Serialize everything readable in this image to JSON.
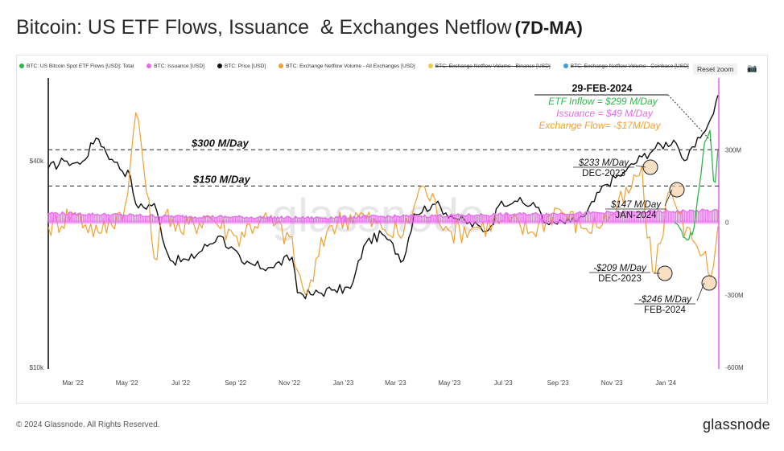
{
  "page": {
    "title": "Bitcoin: US ETF Flows, Issuance  & Exchanges Netflow",
    "title_suffix": "(7D-MA)",
    "footer_copyright": "© 2024 Glassnode. All Rights Reserved.",
    "footer_brand": "glassnode",
    "watermark": "glassnode",
    "reset_zoom": "Reset zoom",
    "camera_icon": "camera-icon"
  },
  "legend": [
    {
      "label": "BTC: US Bitcoin Spot ETF Flows [USD]: Total",
      "color": "#2eb84a",
      "hidden": false
    },
    {
      "label": "BTC: Issuance [USD]",
      "color": "#e56be8",
      "hidden": false
    },
    {
      "label": "BTC: Price [USD]",
      "color": "#111111",
      "hidden": false
    },
    {
      "label": "BTC: Exchange Netflow Volume - All Exchanges [USD]",
      "color": "#f0a030",
      "hidden": false
    },
    {
      "label": "BTC: Exchange Netflow Volume - Binance [USD]",
      "color": "#f2c94c",
      "hidden": true
    },
    {
      "label": "BTC: Exchange Netflow Volume - Coinbase [USD]",
      "color": "#3aa0d8",
      "hidden": true
    }
  ],
  "chart_data": {
    "type": "line",
    "x_ticks": [
      "Mar '22",
      "May '22",
      "Jul '22",
      "Sep '22",
      "Nov '22",
      "Jan '23",
      "Mar '23",
      "May '23",
      "Jul '23",
      "Sep '23",
      "Nov '23",
      "Jan '24"
    ],
    "y_left_ticks": [
      "$40k",
      "$10k"
    ],
    "y_left_scale": "log",
    "y_right_ticks": [
      "300M",
      "0",
      "-300M",
      "-600M"
    ],
    "y_right_range": [
      -600,
      600
    ],
    "series": [
      {
        "name": "BTC: Price [USD]",
        "color": "#111111",
        "axis": "left",
        "x": [
          "2022-02-01",
          "2022-02-20",
          "2022-03-10",
          "2022-03-28",
          "2022-04-15",
          "2022-05-05",
          "2022-05-12",
          "2022-06-01",
          "2022-06-18",
          "2022-07-10",
          "2022-08-14",
          "2022-09-10",
          "2022-10-10",
          "2022-11-05",
          "2022-11-10",
          "2022-11-25",
          "2022-12-20",
          "2023-01-10",
          "2023-01-25",
          "2023-02-15",
          "2023-03-10",
          "2023-03-22",
          "2023-04-14",
          "2023-05-10",
          "2023-06-15",
          "2023-06-28",
          "2023-07-15",
          "2023-08-10",
          "2023-08-20",
          "2023-09-15",
          "2023-10-01",
          "2023-10-24",
          "2023-11-15",
          "2023-12-05",
          "2023-12-20",
          "2024-01-11",
          "2024-01-23",
          "2024-02-10",
          "2024-02-20",
          "2024-02-29"
        ],
        "values": [
          38000,
          40000,
          39000,
          47000,
          40000,
          36000,
          29000,
          30000,
          20500,
          20500,
          24300,
          20000,
          19500,
          21000,
          16500,
          16300,
          16800,
          17000,
          23000,
          24500,
          20500,
          28000,
          30000,
          27000,
          25000,
          30500,
          30500,
          29200,
          26000,
          26500,
          27500,
          34000,
          37000,
          41000,
          43500,
          46000,
          39500,
          47000,
          52000,
          62000
        ]
      },
      {
        "name": "BTC: Exchange Netflow Volume - All Exchanges [USD]",
        "color": "#f0a030",
        "axis": "right",
        "x": [
          "2022-02-01",
          "2022-03-01",
          "2022-04-01",
          "2022-05-01",
          "2022-05-12",
          "2022-06-01",
          "2022-06-15",
          "2022-07-01",
          "2022-08-01",
          "2022-09-01",
          "2022-10-01",
          "2022-11-01",
          "2022-11-10",
          "2022-11-20",
          "2022-12-15",
          "2023-01-15",
          "2023-02-15",
          "2023-03-10",
          "2023-04-01",
          "2023-05-01",
          "2023-06-01",
          "2023-07-01",
          "2023-08-01",
          "2023-09-01",
          "2023-10-01",
          "2023-11-01",
          "2023-11-20",
          "2023-12-05",
          "2023-12-10",
          "2023-12-20",
          "2024-01-05",
          "2024-01-15",
          "2024-02-01",
          "2024-02-15",
          "2024-02-22",
          "2024-02-29"
        ],
        "values": [
          -20,
          40,
          -50,
          80,
          490,
          -150,
          60,
          -40,
          30,
          -60,
          20,
          -60,
          -200,
          -310,
          -20,
          40,
          -30,
          -50,
          160,
          -40,
          -20,
          10,
          -40,
          60,
          -30,
          30,
          120,
          233,
          -50,
          -209,
          147,
          40,
          -80,
          -120,
          -246,
          -17
        ]
      },
      {
        "name": "BTC: Issuance [USD]",
        "color": "#e56be8",
        "axis": "right",
        "x": [
          "2022-02-01",
          "2022-06-15",
          "2022-11-20",
          "2023-06-01",
          "2023-12-01",
          "2024-02-29"
        ],
        "values": [
          38,
          25,
          18,
          30,
          42,
          49
        ]
      },
      {
        "name": "BTC: US Bitcoin Spot ETF Flows [USD]: Total",
        "color": "#2eb84a",
        "axis": "right",
        "x": [
          "2024-01-11",
          "2024-01-18",
          "2024-01-26",
          "2024-02-02",
          "2024-02-08",
          "2024-02-14",
          "2024-02-20",
          "2024-02-25",
          "2024-02-29"
        ],
        "values": [
          0,
          -30,
          -80,
          -20,
          150,
          330,
          380,
          120,
          299
        ]
      }
    ],
    "reference_lines": [
      {
        "label": "$300 M/Day",
        "value": 300
      },
      {
        "label": "$150 M/Day",
        "value": 150
      }
    ],
    "annotations": [
      {
        "line1": "$233 M/Day",
        "line2": "DEC-2023"
      },
      {
        "line1": "$147 M/Day",
        "line2": "JAN-2024"
      },
      {
        "line1": "-$209 M/Day",
        "line2": "DEC-2023"
      },
      {
        "line1": "-$246 M/Day",
        "line2": "FEB-2024"
      }
    ],
    "callout": {
      "date": "29-FEB-2024",
      "etf": "ETF Inflow = $299 M/Day",
      "issuance": "Issuance = $49 M/Day",
      "exchange": "Exchange Flow= -$17M/Day"
    }
  }
}
